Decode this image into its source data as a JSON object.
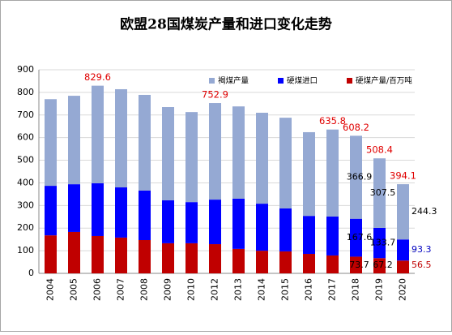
{
  "chart_data": {
    "type": "stacked_bar",
    "title": "欧盟28国煤炭产量和进口变化走势",
    "categories": [
      "2004",
      "2005",
      "2006",
      "2007",
      "2008",
      "2009",
      "2010",
      "2012",
      "2013",
      "2014",
      "2015",
      "2016",
      "2017",
      "2018",
      "2019",
      "2020"
    ],
    "series": [
      {
        "name": "硬煤产量/百万吨",
        "color": "#c00000",
        "values": [
          168,
          183,
          165,
          158,
          147,
          133,
          133,
          129,
          108,
          100,
          97,
          86,
          79,
          73.7,
          67.2,
          56.5
        ],
        "value_labels": [
          null,
          null,
          null,
          null,
          null,
          null,
          null,
          null,
          null,
          null,
          null,
          null,
          null,
          "73.7",
          "67.2",
          "56.5"
        ]
      },
      {
        "name": "硬煤进口",
        "color": "#0000ff",
        "values": [
          219,
          211,
          233,
          222,
          219,
          190,
          182,
          197,
          222,
          208,
          190,
          168,
          172,
          167.6,
          133.7,
          93.3
        ],
        "value_labels": [
          null,
          null,
          null,
          null,
          null,
          null,
          null,
          null,
          null,
          null,
          null,
          null,
          null,
          "167.6",
          "133.7",
          "93.3"
        ]
      },
      {
        "name": "褐煤产量",
        "color": "#95a9d3",
        "values": [
          383,
          391,
          431.6,
          434,
          423,
          412,
          398,
          426.9,
          408,
          402,
          401,
          370,
          384.8,
          366.9,
          307.5,
          244.3
        ],
        "value_labels": [
          null,
          null,
          null,
          null,
          null,
          null,
          null,
          null,
          null,
          null,
          null,
          null,
          null,
          "366.9",
          "307.5",
          "244.3"
        ]
      }
    ],
    "totals": [
      null,
      null,
      829.6,
      null,
      null,
      null,
      null,
      752.9,
      null,
      null,
      null,
      null,
      635.8,
      608.2,
      508.4,
      394.1
    ],
    "ylim": [
      0,
      900
    ],
    "yticks": [
      0,
      100,
      200,
      300,
      400,
      500,
      600,
      700,
      800,
      900
    ],
    "grid": true
  }
}
